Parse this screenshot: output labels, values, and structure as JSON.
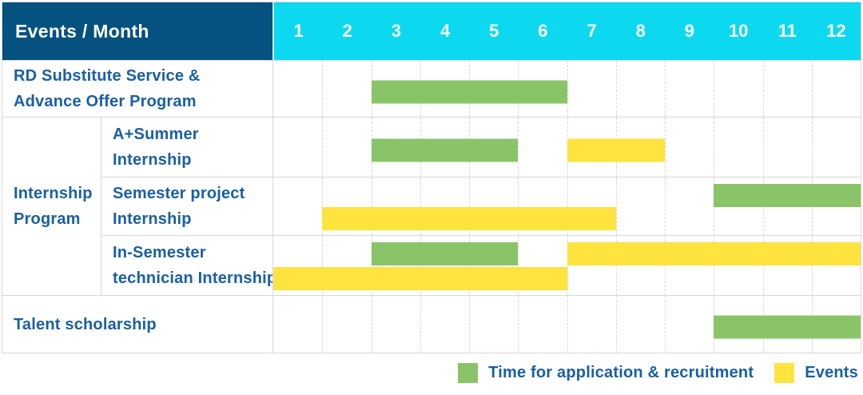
{
  "header": {
    "title": "Events / Month"
  },
  "months": [
    "1",
    "2",
    "3",
    "4",
    "5",
    "6",
    "7",
    "8",
    "9",
    "10",
    "11",
    "12"
  ],
  "group_label": {
    "lines": [
      "Internship",
      "Program"
    ]
  },
  "rows": [
    {
      "name": "rd-substitute",
      "lines": [
        "RD Substitute Service &",
        "Advance Offer Program"
      ],
      "bars": [
        {
          "type": "application",
          "start": 3,
          "end": 6,
          "lane": "center"
        }
      ]
    },
    {
      "name": "a-plus-summer",
      "lines": [
        "A+Summer",
        "Internship"
      ],
      "bars": [
        {
          "type": "application",
          "start": 3,
          "end": 5,
          "lane": "center"
        },
        {
          "type": "event",
          "start": 7,
          "end": 8,
          "lane": "center"
        }
      ]
    },
    {
      "name": "semester-project",
      "lines": [
        "Semester project",
        "Internship"
      ],
      "bars": [
        {
          "type": "application",
          "start": 10,
          "end": 12,
          "lane": "top"
        },
        {
          "type": "event",
          "start": 2,
          "end": 7,
          "lane": "bottom"
        }
      ]
    },
    {
      "name": "in-semester-technician",
      "lines": [
        "In-Semester",
        "technician Internship"
      ],
      "bars": [
        {
          "type": "application",
          "start": 3,
          "end": 5,
          "lane": "top"
        },
        {
          "type": "event",
          "start": 7,
          "end": 12,
          "lane": "top"
        },
        {
          "type": "event",
          "start": 1,
          "end": 6,
          "lane": "bottom"
        }
      ]
    },
    {
      "name": "talent-scholarship",
      "lines": [
        "Talent scholarship"
      ],
      "bars": [
        {
          "type": "application",
          "start": 10,
          "end": 12,
          "lane": "center"
        }
      ]
    }
  ],
  "legend": [
    {
      "type": "application",
      "label": "Time for application & recruitment"
    },
    {
      "type": "event",
      "label": "Events"
    }
  ],
  "colors": {
    "header_bg": "#05517f",
    "month_bg": "#0cd9f0",
    "text_blue": "#1a5fa3",
    "application": "#8ac468",
    "event": "#ffe33e",
    "grid": "#d8d8d8",
    "header_text": "#ffffff"
  },
  "chart_data": {
    "type": "table",
    "subtype": "gantt",
    "title": "Events / Month",
    "x_categories": [
      "1",
      "2",
      "3",
      "4",
      "5",
      "6",
      "7",
      "8",
      "9",
      "10",
      "11",
      "12"
    ],
    "x_range": [
      1,
      12
    ],
    "legend_position": "bottom-right",
    "legend_entries": [
      "Time for application & recruitment",
      "Events"
    ],
    "rows": [
      {
        "event": "RD Substitute Service & Advance Offer Program",
        "application_recruitment_months": [
          [
            3,
            6
          ]
        ],
        "event_months": []
      },
      {
        "event": "Internship Program - A+Summer Internship",
        "application_recruitment_months": [
          [
            3,
            5
          ]
        ],
        "event_months": [
          [
            7,
            8
          ]
        ]
      },
      {
        "event": "Internship Program - Semester project Internship",
        "application_recruitment_months": [
          [
            10,
            12
          ]
        ],
        "event_months": [
          [
            2,
            7
          ]
        ]
      },
      {
        "event": "Internship Program - In-Semester technician Internship",
        "application_recruitment_months": [
          [
            3,
            5
          ]
        ],
        "event_months": [
          [
            7,
            12
          ],
          [
            1,
            6
          ]
        ]
      },
      {
        "event": "Talent scholarship",
        "application_recruitment_months": [
          [
            10,
            12
          ]
        ],
        "event_months": []
      }
    ]
  }
}
